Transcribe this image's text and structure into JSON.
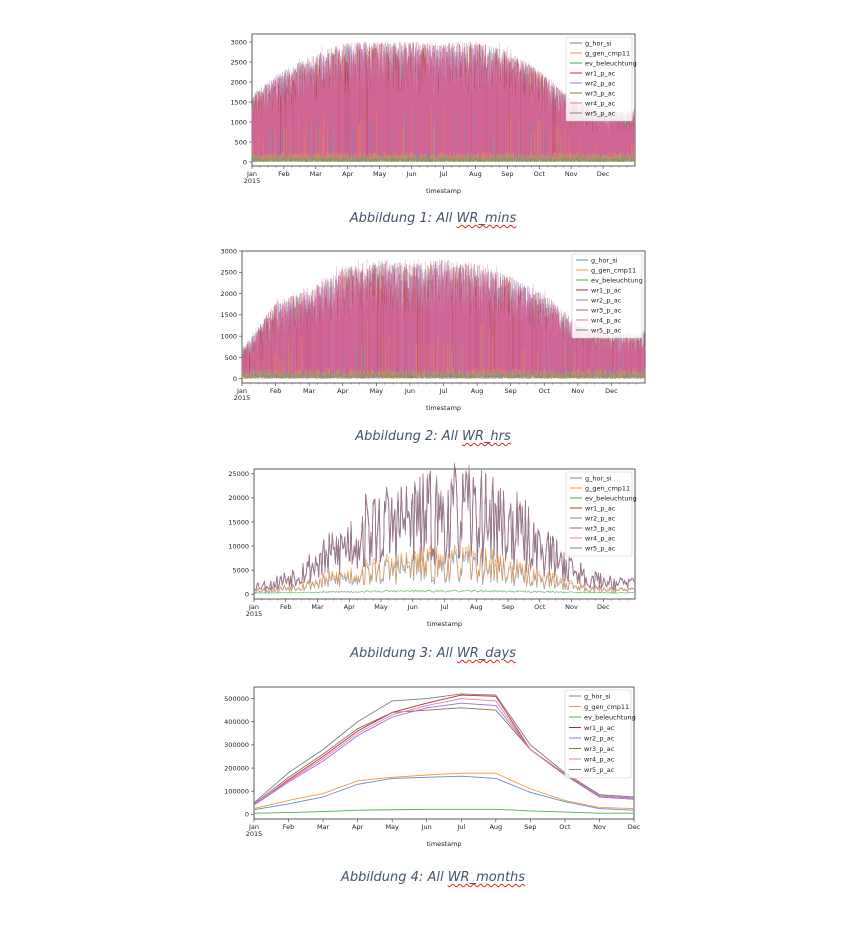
{
  "figures": [
    {
      "caption_prefix": "Abbildung 1: All ",
      "caption_underlined": "WR_mins",
      "caption_suffix": "",
      "chart_data": {
        "type": "line",
        "title": "",
        "xlabel": "timestamp",
        "ylabel": "",
        "x_ticks": [
          "Jan\n2015",
          "Feb",
          "Mar",
          "Apr",
          "May",
          "Jun",
          "Jul",
          "Aug",
          "Sep",
          "Oct",
          "Nov",
          "Dec"
        ],
        "yticks": [
          0,
          500,
          1000,
          1500,
          2000,
          2500,
          3000
        ],
        "ylim": [
          -100,
          3200
        ],
        "legend_placement": "top-right",
        "series": [
          {
            "name": "g_hor_si",
            "color": "#5b8fc7"
          },
          {
            "name": "g_gen_cmp11",
            "color": "#f39a3c"
          },
          {
            "name": "ev_beleuchtung",
            "color": "#4caf50"
          },
          {
            "name": "wr1_p_ac",
            "color": "#c62828"
          },
          {
            "name": "wr2_p_ac",
            "color": "#9575cd"
          },
          {
            "name": "wr3_p_ac",
            "color": "#8d6e63"
          },
          {
            "name": "wr4_p_ac",
            "color": "#e377c2"
          },
          {
            "name": "wr5_p_ac",
            "color": "#7f7f7f"
          }
        ],
        "monthly_peak_envelope": [
          1700,
          2300,
          2700,
          3000,
          3000,
          3000,
          3000,
          3000,
          2800,
          2300,
          1600,
          1300
        ]
      }
    },
    {
      "caption_prefix": "Abbildung 2: All ",
      "caption_underlined": "WR_hrs",
      "caption_suffix": "",
      "chart_data": {
        "type": "line",
        "title": "",
        "xlabel": "timestamp",
        "ylabel": "",
        "x_ticks": [
          "Jan\n2015",
          "Feb",
          "Mar",
          "Apr",
          "May",
          "Jun",
          "Jul",
          "Aug",
          "Sep",
          "Oct",
          "Nov",
          "Dec"
        ],
        "yticks": [
          0,
          500,
          1000,
          1500,
          2000,
          2500,
          3000
        ],
        "ylim": [
          -100,
          3000
        ],
        "legend_placement": "top-right",
        "series": [
          {
            "name": "g_hor_si",
            "color": "#5b8fc7"
          },
          {
            "name": "g_gen_cmp11",
            "color": "#f39a3c"
          },
          {
            "name": "ev_beleuchtung",
            "color": "#4caf50"
          },
          {
            "name": "wr1_p_ac",
            "color": "#c62828"
          },
          {
            "name": "wr2_p_ac",
            "color": "#9575cd"
          },
          {
            "name": "wr3_p_ac",
            "color": "#8d6e63"
          },
          {
            "name": "wr4_p_ac",
            "color": "#e377c2"
          },
          {
            "name": "wr5_p_ac",
            "color": "#7f7f7f"
          }
        ],
        "monthly_peak_envelope": [
          700,
          1800,
          2100,
          2600,
          2800,
          2700,
          2800,
          2700,
          2400,
          2000,
          1300,
          1100
        ]
      }
    },
    {
      "caption_prefix": "Abbildung 3: All ",
      "caption_underlined": "WR_days",
      "caption_suffix": "",
      "chart_data": {
        "type": "line",
        "title": "",
        "xlabel": "timestamp",
        "ylabel": "",
        "x_ticks": [
          "Jan\n2015",
          "Feb",
          "Mar",
          "Apr",
          "May",
          "Jun",
          "Jul",
          "Aug",
          "Sep",
          "Oct",
          "Nov",
          "Dec"
        ],
        "yticks": [
          0,
          5000,
          10000,
          15000,
          20000,
          25000
        ],
        "ylim": [
          -1000,
          26000
        ],
        "legend_placement": "top-right",
        "series": [
          {
            "name": "g_hor_si",
            "color": "#5b8fc7",
            "monthly_level": [
              800,
              1800,
              3000,
              4500,
              5500,
              6000,
              6200,
              5800,
              4000,
              2500,
              1200,
              900
            ]
          },
          {
            "name": "g_gen_cmp11",
            "color": "#f39a3c",
            "monthly_level": [
              1000,
              2000,
              3500,
              5000,
              6200,
              6800,
              7000,
              6500,
              4500,
              3000,
              1400,
              1000
            ]
          },
          {
            "name": "ev_beleuchtung",
            "color": "#4caf50",
            "monthly_level": [
              300,
              400,
              500,
              600,
              700,
              700,
              700,
              700,
              600,
              500,
              400,
              300
            ]
          },
          {
            "name": "wr1_p_ac",
            "color": "#c62828",
            "monthly_level": [
              2000,
              5000,
              9000,
              14000,
              16000,
              17000,
              18000,
              17000,
              13000,
              8000,
              3500,
              2500
            ]
          },
          {
            "name": "wr2_p_ac",
            "color": "#9575cd",
            "monthly_level": [
              1900,
              4800,
              8800,
              13800,
              15800,
              16800,
              17800,
              16800,
              12800,
              7800,
              3400,
              2400
            ]
          },
          {
            "name": "wr3_p_ac",
            "color": "#8d6e63",
            "monthly_level": [
              2000,
              5000,
              9000,
              14000,
              16000,
              17000,
              18000,
              17000,
              13000,
              8000,
              3500,
              2500
            ]
          },
          {
            "name": "wr4_p_ac",
            "color": "#e377c2",
            "monthly_level": [
              2000,
              5000,
              9000,
              14000,
              16000,
              17000,
              18000,
              17000,
              13000,
              8000,
              3500,
              2500
            ]
          },
          {
            "name": "wr5_p_ac",
            "color": "#7f7f7f",
            "monthly_level": [
              2000,
              5000,
              9000,
              14000,
              16000,
              17000,
              18000,
              17000,
              13000,
              8000,
              3500,
              2500
            ]
          }
        ]
      }
    },
    {
      "caption_prefix": "Abbildung 4: All ",
      "caption_underlined": "WR_months",
      "caption_suffix": "",
      "chart_data": {
        "type": "line",
        "title": "",
        "xlabel": "timestamp",
        "ylabel": "",
        "x_ticks": [
          "Jan\n2015",
          "Feb",
          "Mar",
          "Apr",
          "May",
          "Jun",
          "Jul",
          "Aug",
          "Sep",
          "Oct",
          "Nov",
          "Dec"
        ],
        "yticks": [
          0,
          100000,
          200000,
          300000,
          400000,
          500000
        ],
        "ylim": [
          -20000,
          550000
        ],
        "legend_placement": "top-right",
        "series": [
          {
            "name": "g_hor_si",
            "color": "#5b8fc7",
            "values": [
              20000,
              45000,
              75000,
              130000,
              155000,
              160000,
              165000,
              155000,
              95000,
              55000,
              25000,
              18000
            ]
          },
          {
            "name": "g_gen_cmp11",
            "color": "#f39a3c",
            "values": [
              25000,
              60000,
              90000,
              145000,
              160000,
              170000,
              178000,
              178000,
              110000,
              60000,
              30000,
              25000
            ]
          },
          {
            "name": "ev_beleuchtung",
            "color": "#4caf50",
            "values": [
              5000,
              8000,
              12000,
              18000,
              20000,
              22000,
              22000,
              22000,
              15000,
              10000,
              5000,
              5000
            ]
          },
          {
            "name": "wr1_p_ac",
            "color": "#c62828",
            "values": [
              40000,
              150000,
              250000,
              360000,
              440000,
              480000,
              515000,
              510000,
              280000,
              175000,
              80000,
              70000
            ]
          },
          {
            "name": "wr2_p_ac",
            "color": "#9575cd",
            "values": [
              40000,
              140000,
              230000,
              340000,
              420000,
              460000,
              480000,
              470000,
              280000,
              170000,
              75000,
              65000
            ]
          },
          {
            "name": "wr3_p_ac",
            "color": "#8d6e63",
            "values": [
              45000,
              160000,
              260000,
              370000,
              440000,
              450000,
              460000,
              450000,
              280000,
              170000,
              80000,
              70000
            ]
          },
          {
            "name": "wr4_p_ac",
            "color": "#e377c2",
            "values": [
              42000,
              145000,
              240000,
              350000,
              430000,
              470000,
              500000,
              490000,
              280000,
              175000,
              80000,
              70000
            ]
          },
          {
            "name": "wr5_p_ac",
            "color": "#7f7f7f",
            "values": [
              50000,
              180000,
              280000,
              400000,
              490000,
              500000,
              520000,
              515000,
              300000,
              180000,
              85000,
              75000
            ]
          }
        ]
      }
    }
  ]
}
